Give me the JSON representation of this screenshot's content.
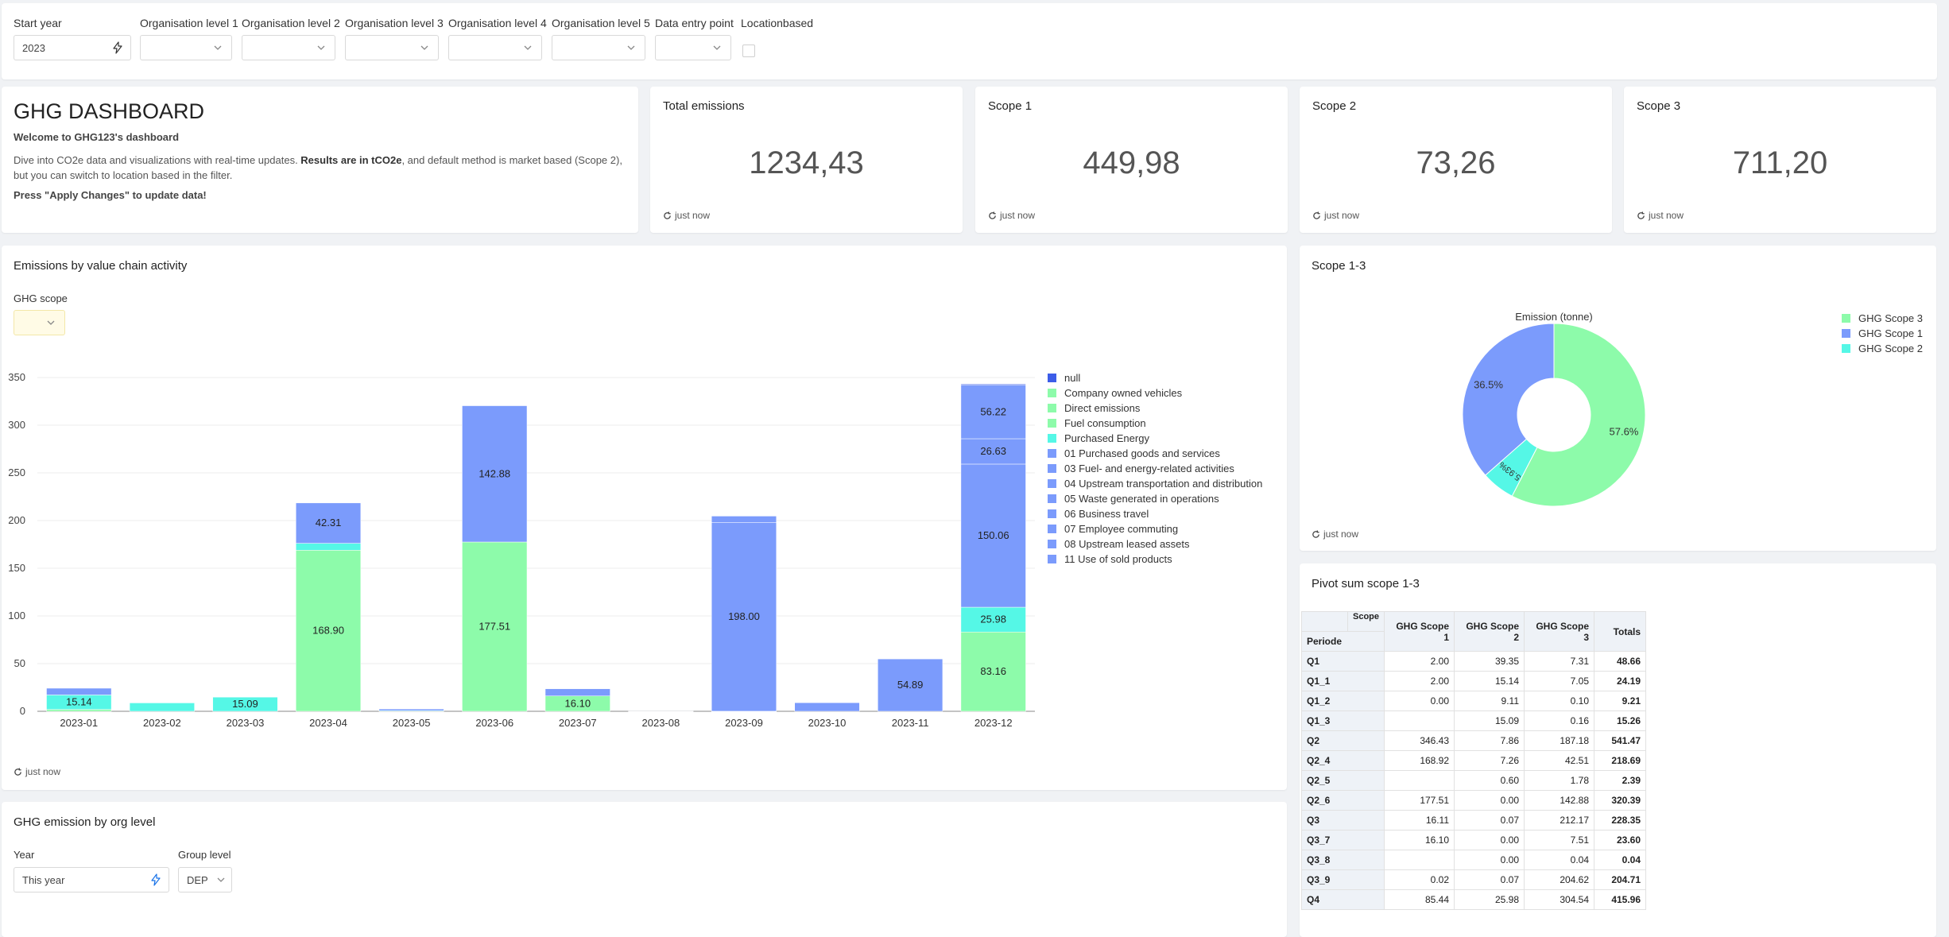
{
  "filters": {
    "start_year_label": "Start year",
    "start_year_value": "2023",
    "org_levels": [
      "Organisation level 1",
      "Organisation level 2",
      "Organisation level 3",
      "Organisation level 4",
      "Organisation level 5"
    ],
    "data_entry_label": "Data entry point",
    "locationbased_label": "Locationbased"
  },
  "intro": {
    "title": "GHG DASHBOARD",
    "welcome": "Welcome to GHG123's dashboard",
    "desc_part1": "Dive into CO2e data and visualizations with real-time updates. ",
    "desc_bold": "Results are in tCO2e",
    "desc_part2": ", and default method is market based (Scope 2), but you can switch to location based in the filter.",
    "apply_note": "Press \"Apply Changes\" to update data!"
  },
  "kpis": [
    {
      "title": "Total emissions",
      "value": "1234,43",
      "stamp": "just now"
    },
    {
      "title": "Scope 1",
      "value": "449,98",
      "stamp": "just now"
    },
    {
      "title": "Scope 2",
      "value": "73,26",
      "stamp": "just now"
    },
    {
      "title": "Scope 3",
      "value": "711,20",
      "stamp": "just now"
    }
  ],
  "value_chain": {
    "title": "Emissions by value chain activity",
    "scope_filter_label": "GHG scope",
    "stamp": "just now"
  },
  "pie_card": {
    "title": "Scope 1-3",
    "stamp": "just now"
  },
  "pivot": {
    "title": "Pivot sum scope 1-3",
    "corner_scope": "Scope",
    "corner_period": "Periode",
    "columns": [
      "GHG Scope 1",
      "GHG Scope 2",
      "GHG Scope 3",
      "Totals"
    ],
    "rows": [
      {
        "label": "Q1",
        "cells": [
          "2.00",
          "39.35",
          "7.31",
          "48.66"
        ]
      },
      {
        "label": "Q1_1",
        "cells": [
          "2.00",
          "15.14",
          "7.05",
          "24.19"
        ]
      },
      {
        "label": "Q1_2",
        "cells": [
          "0.00",
          "9.11",
          "0.10",
          "9.21"
        ]
      },
      {
        "label": "Q1_3",
        "cells": [
          "",
          "15.09",
          "0.16",
          "15.26"
        ]
      },
      {
        "label": "Q2",
        "cells": [
          "346.43",
          "7.86",
          "187.18",
          "541.47"
        ]
      },
      {
        "label": "Q2_4",
        "cells": [
          "168.92",
          "7.26",
          "42.51",
          "218.69"
        ]
      },
      {
        "label": "Q2_5",
        "cells": [
          "",
          "0.60",
          "1.78",
          "2.39"
        ]
      },
      {
        "label": "Q2_6",
        "cells": [
          "177.51",
          "0.00",
          "142.88",
          "320.39"
        ]
      },
      {
        "label": "Q3",
        "cells": [
          "16.11",
          "0.07",
          "212.17",
          "228.35"
        ]
      },
      {
        "label": "Q3_7",
        "cells": [
          "16.10",
          "0.00",
          "7.51",
          "23.60"
        ]
      },
      {
        "label": "Q3_8",
        "cells": [
          "",
          "0.00",
          "0.04",
          "0.04"
        ]
      },
      {
        "label": "Q3_9",
        "cells": [
          "0.02",
          "0.07",
          "204.62",
          "204.71"
        ]
      },
      {
        "label": "Q4",
        "cells": [
          "85.44",
          "25.98",
          "304.54",
          "415.96"
        ]
      }
    ]
  },
  "org_level": {
    "title": "GHG emission by org level",
    "year_label": "Year",
    "year_value": "This year",
    "group_label": "Group level",
    "group_value": "DEP"
  },
  "colors": {
    "green": "#8dfbaa",
    "blue": "#7b9bfc",
    "cyan": "#55f7e6",
    "dark_blue": "#3c5de8"
  },
  "chart_data": [
    {
      "type": "bar",
      "stacked": true,
      "categories": [
        "2023-01",
        "2023-02",
        "2023-03",
        "2023-04",
        "2023-05",
        "2023-06",
        "2023-07",
        "2023-08",
        "2023-09",
        "2023-10",
        "2023-11",
        "2023-12"
      ],
      "ylim": [
        0,
        350
      ],
      "yticks": [
        0,
        50,
        100,
        150,
        200,
        250,
        300,
        350
      ],
      "grid": true,
      "legend_position": "right",
      "legend": [
        {
          "name": "null",
          "color": "#3c5de8"
        },
        {
          "name": "Company owned vehicles",
          "color": "#8dfbaa"
        },
        {
          "name": "Direct emissions",
          "color": "#8dfbaa"
        },
        {
          "name": "Fuel consumption",
          "color": "#8dfbaa"
        },
        {
          "name": "Purchased Energy",
          "color": "#55f7e6"
        },
        {
          "name": "01 Purchased goods and services",
          "color": "#7b9bfc"
        },
        {
          "name": "03 Fuel- and energy-related activities",
          "color": "#7b9bfc"
        },
        {
          "name": "04 Upstream transportation and distribution",
          "color": "#7b9bfc"
        },
        {
          "name": "05 Waste generated in operations",
          "color": "#7b9bfc"
        },
        {
          "name": "06 Business travel",
          "color": "#7b9bfc"
        },
        {
          "name": "07 Employee commuting",
          "color": "#7b9bfc"
        },
        {
          "name": "08 Upstream leased assets",
          "color": "#7b9bfc"
        },
        {
          "name": "11 Use of sold products",
          "color": "#7b9bfc"
        }
      ],
      "series": [
        {
          "name": "Fuel consumption",
          "color": "#8dfbaa",
          "values": [
            2.0,
            0,
            0,
            168.9,
            0,
            177.51,
            16.1,
            0,
            0,
            0,
            0,
            83.16
          ],
          "labels": [
            "",
            "",
            "",
            "168.90",
            "",
            "177.51",
            "16.10",
            "",
            "",
            "",
            "",
            "83.16"
          ]
        },
        {
          "name": "Purchased Energy",
          "color": "#55f7e6",
          "values": [
            15.14,
            9.11,
            15.09,
            7.26,
            0.6,
            0,
            0,
            0,
            0.07,
            0,
            0,
            25.98
          ],
          "labels": [
            "15.14",
            "",
            "15.09",
            "",
            "",
            "",
            "",
            "",
            "",
            "",
            "",
            "25.98"
          ]
        },
        {
          "name": "01 Purchased goods and services",
          "color": "#7b9bfc",
          "values": [
            7.05,
            0.1,
            0.16,
            42.31,
            1.78,
            142.88,
            7.51,
            0.04,
            198.0,
            9.0,
            54.89,
            150.06
          ],
          "labels": [
            "",
            "",
            "",
            "42.31",
            "",
            "142.88",
            "",
            "",
            "198.00",
            "",
            "54.89",
            "150.06"
          ]
        },
        {
          "name": "04 Upstream transportation and distribution",
          "color": "#7b9bfc",
          "values": [
            0,
            0,
            0,
            0,
            0,
            0,
            0,
            0,
            6.6,
            0,
            0,
            26.63
          ],
          "labels": [
            "",
            "",
            "",
            "",
            "",
            "",
            "",
            "",
            "",
            "",
            "",
            "26.63"
          ]
        },
        {
          "name": "06 Business travel",
          "color": "#7b9bfc",
          "values": [
            0,
            0,
            0,
            0,
            0,
            0,
            0,
            0,
            0,
            0,
            0,
            56.22
          ],
          "labels": [
            "",
            "",
            "",
            "",
            "",
            "",
            "",
            "",
            "",
            "",
            "",
            "56.22"
          ]
        },
        {
          "name": "null",
          "color": "#3c5de8",
          "values": [
            0,
            0,
            0,
            0,
            0,
            0,
            0,
            0,
            0,
            0,
            0,
            1.0
          ],
          "labels": [
            "",
            "",
            "",
            "",
            "",
            "",
            "",
            "",
            "",
            "",
            "",
            ""
          ]
        }
      ]
    },
    {
      "type": "pie",
      "donut": true,
      "title": "Emission (tonne)",
      "legend_position": "right",
      "slices": [
        {
          "name": "GHG Scope 3",
          "value": 57.6,
          "label": "57.6%",
          "color": "#8dfbaa"
        },
        {
          "name": "GHG Scope 2",
          "value": 5.93,
          "label": "5.93%",
          "color": "#55f7e6"
        },
        {
          "name": "GHG Scope 1",
          "value": 36.5,
          "label": "36.5%",
          "color": "#7b9bfc"
        }
      ],
      "legend_order": [
        "GHG Scope 3",
        "GHG Scope 1",
        "GHG Scope 2"
      ]
    }
  ]
}
